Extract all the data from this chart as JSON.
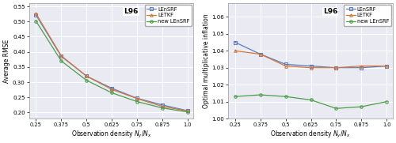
{
  "x": [
    0.25,
    0.375,
    0.5,
    0.625,
    0.75,
    0.875,
    1.0
  ],
  "rmse_LEnSRF": [
    0.521,
    0.385,
    0.32,
    0.28,
    0.247,
    0.225,
    0.206
  ],
  "rmse_LETKF": [
    0.526,
    0.387,
    0.32,
    0.276,
    0.246,
    0.22,
    0.205
  ],
  "rmse_newLEnSRF": [
    0.501,
    0.37,
    0.306,
    0.265,
    0.236,
    0.215,
    0.202
  ],
  "infl_LEnSRF": [
    1.045,
    1.038,
    1.032,
    1.031,
    1.03,
    1.03,
    1.031
  ],
  "infl_LETKF": [
    1.04,
    1.038,
    1.031,
    1.03,
    1.03,
    1.031,
    1.031
  ],
  "infl_newLEnSRF": [
    1.013,
    1.014,
    1.013,
    1.011,
    1.006,
    1.007,
    1.01
  ],
  "color_LEnSRF": "#5a7dbf",
  "color_LETKF": "#d4773a",
  "color_newLEnSRF": "#4a9e4a",
  "bg_color": "#eaeaf2",
  "xlabel": "Observation density $N_y/N_x$",
  "ylabel_left": "Average RMSE",
  "ylabel_right": "Optimal multiplicative inflation",
  "title": "L96",
  "legend_labels": [
    "LEnSRF",
    "LETKF",
    "new LEnSRF"
  ],
  "marker_LEnSRF": "s",
  "marker_LETKF": "^",
  "marker_newLEnSRF": "o",
  "rmse_ylim": [
    0.18,
    0.56
  ],
  "rmse_yticks": [
    0.2,
    0.25,
    0.3,
    0.35,
    0.4,
    0.45,
    0.5,
    0.55
  ],
  "infl_ylim": [
    1.0,
    1.068
  ],
  "infl_yticks": [
    1.0,
    1.01,
    1.02,
    1.03,
    1.04,
    1.05,
    1.06
  ]
}
